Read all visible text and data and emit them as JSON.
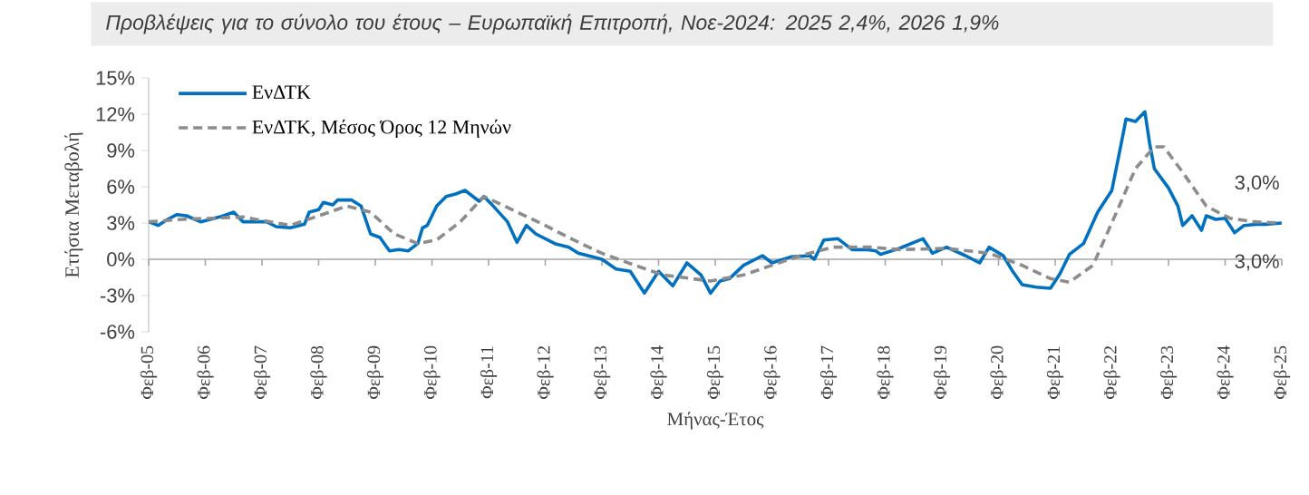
{
  "chart_data": {
    "type": "line",
    "title": "Προβλέψεις για το σύνολο του έτους – Ευρωπαϊκή Επιτροπή, Νοε-2024: 2025 2,4%, 2026 1,9%",
    "xlabel": "Μήνας-Έτος",
    "ylabel": "Ετήσια Μεταβολή",
    "xlim": [
      "2005-02",
      "2025-02"
    ],
    "ylim": [
      -6,
      15
    ],
    "xticks": [
      {
        "value": "2005-02",
        "label": "Φεβ-05"
      },
      {
        "value": "2006-02",
        "label": "Φεβ-06"
      },
      {
        "value": "2007-02",
        "label": "Φεβ-07"
      },
      {
        "value": "2008-02",
        "label": "Φεβ-08"
      },
      {
        "value": "2009-02",
        "label": "Φεβ-09"
      },
      {
        "value": "2010-02",
        "label": "Φεβ-10"
      },
      {
        "value": "2011-02",
        "label": "Φεβ-11"
      },
      {
        "value": "2012-02",
        "label": "Φεβ-12"
      },
      {
        "value": "2013-02",
        "label": "Φεβ-13"
      },
      {
        "value": "2014-02",
        "label": "Φεβ-14"
      },
      {
        "value": "2015-02",
        "label": "Φεβ-15"
      },
      {
        "value": "2016-02",
        "label": "Φεβ-16"
      },
      {
        "value": "2017-02",
        "label": "Φεβ-17"
      },
      {
        "value": "2018-02",
        "label": "Φεβ-18"
      },
      {
        "value": "2019-02",
        "label": "Φεβ-19"
      },
      {
        "value": "2020-02",
        "label": "Φεβ-20"
      },
      {
        "value": "2021-02",
        "label": "Φεβ-21"
      },
      {
        "value": "2022-02",
        "label": "Φεβ-22"
      },
      {
        "value": "2023-02",
        "label": "Φεβ-23"
      },
      {
        "value": "2024-02",
        "label": "Φεβ-24"
      },
      {
        "value": "2025-02",
        "label": "Φεβ-25"
      }
    ],
    "yticks": [
      {
        "value": -6,
        "label": "-6%"
      },
      {
        "value": -3,
        "label": "-3%"
      },
      {
        "value": 0,
        "label": "0%"
      },
      {
        "value": 3,
        "label": "3%"
      },
      {
        "value": 6,
        "label": "6%"
      },
      {
        "value": 9,
        "label": "9%"
      },
      {
        "value": 12,
        "label": "12%"
      },
      {
        "value": 15,
        "label": "15%"
      }
    ],
    "legend": "top left",
    "ref_lines": [
      {
        "axis": "y",
        "value": 0,
        "color": "#a6a6a6"
      }
    ],
    "annotations": [
      {
        "text": "3,0%",
        "x": "2025-02",
        "y": 3.0
      },
      {
        "text": "3,0%",
        "x": "2025-02",
        "y": 3.0
      }
    ],
    "series": [
      {
        "name": "ΕνΔΤΚ",
        "color": "#0070c0",
        "line_style": "solid",
        "x": [
          "2005-02",
          "2005-04",
          "2005-06",
          "2005-08",
          "2005-10",
          "2006-01",
          "2006-05",
          "2006-08",
          "2006-10",
          "2007-03",
          "2007-05",
          "2007-08",
          "2007-11",
          "2007-12",
          "2008-02",
          "2008-03",
          "2008-05",
          "2008-06",
          "2008-09",
          "2008-11",
          "2009-01",
          "2009-03",
          "2009-05",
          "2009-07",
          "2009-09",
          "2009-11",
          "2009-12",
          "2010-01",
          "2010-03",
          "2010-05",
          "2010-07",
          "2010-09",
          "2010-12",
          "2011-01",
          "2011-03",
          "2011-06",
          "2011-08",
          "2011-10",
          "2011-12",
          "2012-04",
          "2012-07",
          "2012-09",
          "2012-12",
          "2013-02",
          "2013-05",
          "2013-08",
          "2013-11",
          "2014-02",
          "2014-05",
          "2014-08",
          "2014-11",
          "2015-01",
          "2015-03",
          "2015-05",
          "2015-08",
          "2015-12",
          "2016-02",
          "2016-06",
          "2016-10",
          "2016-11",
          "2017-01",
          "2017-04",
          "2017-07",
          "2017-10",
          "2017-12",
          "2018-01",
          "2018-05",
          "2018-10",
          "2018-12",
          "2019-03",
          "2019-07",
          "2019-10",
          "2019-12",
          "2020-03",
          "2020-05",
          "2020-07",
          "2020-10",
          "2021-01",
          "2021-03",
          "2021-05",
          "2021-08",
          "2021-11",
          "2022-02",
          "2022-04",
          "2022-05",
          "2022-07",
          "2022-09",
          "2022-10",
          "2022-11",
          "2023-02",
          "2023-04",
          "2023-05",
          "2023-07",
          "2023-09",
          "2023-10",
          "2023-12",
          "2024-02",
          "2024-04",
          "2024-06",
          "2024-09",
          "2024-11",
          "2025-02"
        ],
        "values": [
          3.1,
          2.8,
          3.3,
          3.7,
          3.6,
          3.1,
          3.5,
          3.9,
          3.1,
          3.1,
          2.7,
          2.6,
          2.9,
          3.9,
          4.1,
          4.7,
          4.5,
          4.9,
          4.9,
          4.4,
          2.1,
          1.8,
          0.7,
          0.8,
          0.7,
          1.3,
          2.6,
          2.8,
          4.4,
          5.2,
          5.4,
          5.7,
          4.8,
          5.2,
          4.4,
          3.1,
          1.4,
          2.8,
          2.1,
          1.3,
          1.0,
          0.5,
          0.2,
          0.0,
          -0.8,
          -1.0,
          -2.8,
          -1.0,
          -2.2,
          -0.3,
          -1.3,
          -2.8,
          -1.8,
          -1.6,
          -0.5,
          0.3,
          -0.3,
          0.2,
          0.3,
          0.0,
          1.6,
          1.7,
          0.8,
          0.8,
          0.7,
          0.4,
          0.9,
          1.7,
          0.5,
          1.0,
          0.3,
          -0.3,
          1.0,
          0.3,
          -1.0,
          -2.1,
          -2.3,
          -2.4,
          -1.2,
          0.4,
          1.3,
          3.9,
          5.7,
          9.6,
          11.6,
          11.4,
          12.2,
          9.6,
          7.5,
          5.9,
          4.4,
          2.8,
          3.6,
          2.4,
          3.6,
          3.3,
          3.4,
          2.2,
          2.8,
          2.9,
          2.9,
          3.0
        ]
      },
      {
        "name": "ΕνΔΤΚ, Μέσος Όρος 12 Μηνών",
        "color": "#8c8c8c",
        "line_style": "dashed",
        "x": [
          "2005-02",
          "2005-09",
          "2006-10",
          "2007-08",
          "2008-02",
          "2008-08",
          "2009-01",
          "2009-06",
          "2009-11",
          "2010-03",
          "2010-08",
          "2011-01",
          "2011-07",
          "2012-02",
          "2012-08",
          "2013-02",
          "2013-09",
          "2014-03",
          "2014-09",
          "2015-01",
          "2015-08",
          "2016-02",
          "2016-08",
          "2017-03",
          "2017-11",
          "2018-05",
          "2019-03",
          "2019-12",
          "2020-07",
          "2021-01",
          "2021-05",
          "2021-10",
          "2022-03",
          "2022-07",
          "2022-11",
          "2023-01",
          "2023-05",
          "2023-10",
          "2024-03",
          "2024-08",
          "2025-02"
        ],
        "values": [
          3.1,
          3.3,
          3.5,
          2.8,
          3.6,
          4.4,
          3.9,
          2.1,
          1.3,
          1.6,
          3.1,
          5.2,
          4.1,
          2.8,
          1.6,
          0.5,
          -0.5,
          -1.3,
          -1.6,
          -1.8,
          -1.3,
          -0.5,
          0.3,
          1.0,
          1.0,
          0.8,
          0.9,
          0.5,
          -0.5,
          -1.6,
          -1.9,
          -0.5,
          3.9,
          7.5,
          9.3,
          9.3,
          7.2,
          4.4,
          3.4,
          3.1,
          3.0
        ]
      }
    ]
  }
}
